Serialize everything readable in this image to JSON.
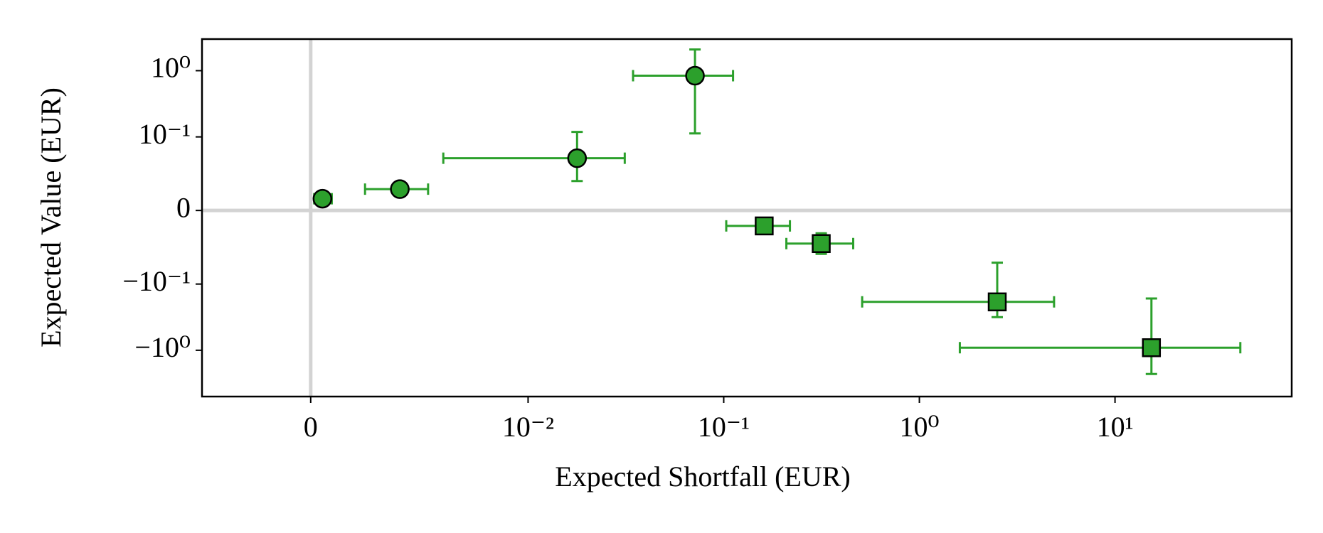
{
  "chart_data": {
    "type": "errorbar-scatter",
    "xlabel": "Expected Shortfall (EUR)",
    "ylabel": "Expected Value (EUR)",
    "xscale": "symlog",
    "xlinthresh": 0.01,
    "yscale": "symlog",
    "ylinthresh": 0.1,
    "xlim": [
      -0.005,
      80
    ],
    "ylim": [
      -5,
      3
    ],
    "xticks": [
      0,
      {
        "value": 0.01,
        "label": "10⁻²"
      },
      {
        "value": 0.1,
        "label": "10⁻¹"
      },
      {
        "value": 1,
        "label": "10⁰"
      },
      {
        "value": 10,
        "label": "10¹"
      }
    ],
    "yticks": [
      {
        "value": -1,
        "label": "−10⁰"
      },
      {
        "value": -0.1,
        "label": "−10⁻¹"
      },
      0,
      {
        "value": 0.1,
        "label": "10⁻¹"
      },
      {
        "value": 1,
        "label": "10⁰"
      }
    ],
    "reference_lines": {
      "x": 0,
      "y": 0,
      "color": "#d3d3d3"
    },
    "series": [
      {
        "marker": "circle",
        "color": "#2ca02c",
        "x": [
          0.00054,
          0.0041,
          0.0178,
          0.0713
        ],
        "xerr_minus": [
          0.00038,
          0.0016,
          0.0117,
          0.0369
        ],
        "xerr_plus": [
          0.00043,
          0.0013,
          0.0134,
          0.0403
        ],
        "y": [
          0.016,
          0.029,
          0.071,
          0.84
        ],
        "yerr_minus": [
          0.009,
          0.002,
          0.031,
          0.727
        ],
        "yerr_plus": [
          0.009,
          0.002,
          0.048,
          1.25
        ]
      },
      {
        "marker": "square",
        "color": "#2ca02c",
        "x": [
          0.161,
          0.315,
          2.5,
          15.35
        ],
        "xerr_minus": [
          0.058,
          0.106,
          1.99,
          13.74
        ],
        "xerr_plus": [
          0.057,
          0.144,
          2.38,
          28.35
        ],
        "y": [
          -0.021,
          -0.045,
          -0.186,
          -0.915
        ],
        "yerr_minus": [
          0.002,
          0.014,
          0.13,
          1.365
        ],
        "yerr_plus": [
          0.002,
          0.014,
          0.115,
          0.75
        ]
      }
    ]
  }
}
